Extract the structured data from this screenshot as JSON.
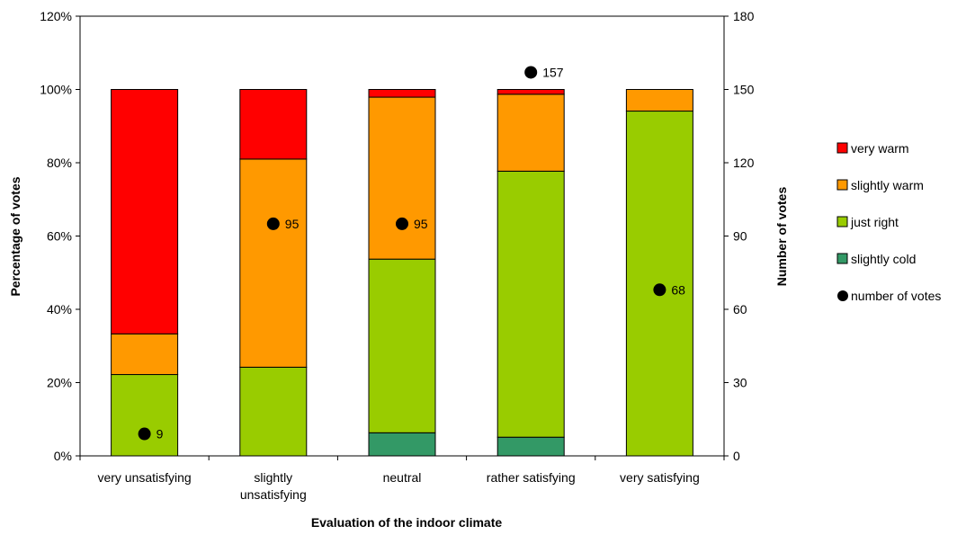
{
  "chart_data": {
    "type": "bar",
    "stacked": true,
    "categories": [
      "very unsatisfying",
      "slightly unsatisfying",
      "neutral",
      "rather satisfying",
      "very satisfying"
    ],
    "series": [
      {
        "name": "slightly cold",
        "color": "#339966",
        "values": [
          0,
          0,
          6.3,
          5.1,
          0
        ]
      },
      {
        "name": "just right",
        "color": "#99CC00",
        "values": [
          22.2,
          24.2,
          47.4,
          72.6,
          94.1
        ]
      },
      {
        "name": "slightly warm",
        "color": "#FF9900",
        "values": [
          11.1,
          56.8,
          44.2,
          21.0,
          5.9
        ]
      },
      {
        "name": "very warm",
        "color": "#FF0000",
        "values": [
          66.7,
          19.0,
          2.1,
          1.3,
          0
        ]
      }
    ],
    "secondary_series": {
      "name": "number of votes",
      "color": "#000000",
      "values": [
        9,
        95,
        95,
        157,
        68
      ]
    },
    "xlabel": "Evaluation of the indoor climate",
    "ylabel": "Percentage of votes",
    "y2label": "Number of votes",
    "ylim": [
      0,
      120
    ],
    "y2lim": [
      0,
      180
    ],
    "yticks": [
      "0%",
      "20%",
      "40%",
      "60%",
      "80%",
      "100%",
      "120%"
    ],
    "y2ticks": [
      "0",
      "30",
      "60",
      "90",
      "120",
      "150",
      "180"
    ],
    "legend": [
      "very warm",
      "slightly warm",
      "just right",
      "slightly cold",
      "number of votes"
    ],
    "legend_position": "right",
    "grid": false
  }
}
